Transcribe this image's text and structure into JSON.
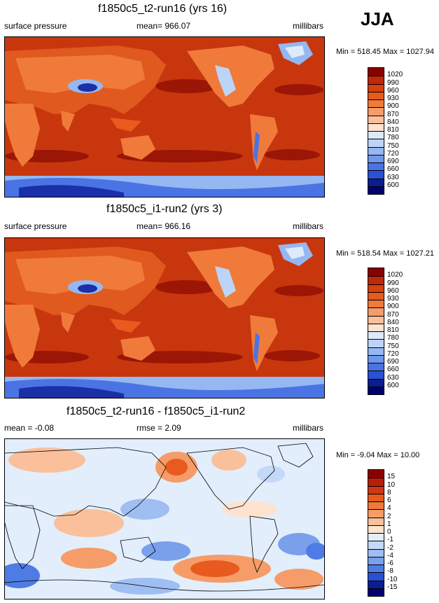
{
  "season": "JJA",
  "panels": [
    {
      "title": "f1850c5_t2-run16 (yrs 16)",
      "left_label": "surface pressure",
      "center_label": "mean= 966.07",
      "units": "millibars",
      "stats": "Min = 518.45 Max = 1027.94",
      "levels": [
        "1020",
        "990",
        "960",
        "930",
        "900",
        "870",
        "840",
        "810",
        "780",
        "750",
        "720",
        "690",
        "660",
        "630",
        "600"
      ],
      "colors": [
        "#8b0000",
        "#c1270a",
        "#d8400f",
        "#e85a1e",
        "#f07a3a",
        "#f59c68",
        "#fac09c",
        "#fde3cf",
        "#dceafa",
        "#bcd4f7",
        "#95b7f2",
        "#6f97ec",
        "#4a74e4",
        "#2a50d6",
        "#0a1f8f",
        "#000070"
      ]
    },
    {
      "title": "f1850c5_i1-run2 (yrs 3)",
      "left_label": "surface pressure",
      "center_label": "mean= 966.16",
      "units": "millibars",
      "stats": "Min = 518.54 Max = 1027.21",
      "levels": [
        "1020",
        "990",
        "960",
        "930",
        "900",
        "870",
        "840",
        "810",
        "780",
        "750",
        "720",
        "690",
        "660",
        "630",
        "600"
      ],
      "colors": [
        "#8b0000",
        "#c1270a",
        "#d8400f",
        "#e85a1e",
        "#f07a3a",
        "#f59c68",
        "#fac09c",
        "#fde3cf",
        "#dceafa",
        "#bcd4f7",
        "#95b7f2",
        "#6f97ec",
        "#4a74e4",
        "#2a50d6",
        "#0a1f8f",
        "#000070"
      ]
    },
    {
      "title": "f1850c5_t2-run16 - f1850c5_i1-run2",
      "left_label": "mean =  -0.08",
      "center_label": "rmse =  2.09",
      "units": "millibars",
      "stats": "Min =  -9.04 Max = 10.00",
      "levels": [
        "15",
        "10",
        "8",
        "6",
        "4",
        "2",
        "1",
        "0",
        "-1",
        "-2",
        "-4",
        "-6",
        "-8",
        "-10",
        "-15"
      ],
      "colors": [
        "#8b0000",
        "#b81e0a",
        "#d33512",
        "#e85a1e",
        "#f07a3a",
        "#f59c68",
        "#fac09c",
        "#fde3cf",
        "#e2eefb",
        "#c4d9f7",
        "#9fbef2",
        "#7aa0ec",
        "#4f7be4",
        "#2a50d6",
        "#0a1f8f",
        "#000070"
      ]
    }
  ]
}
